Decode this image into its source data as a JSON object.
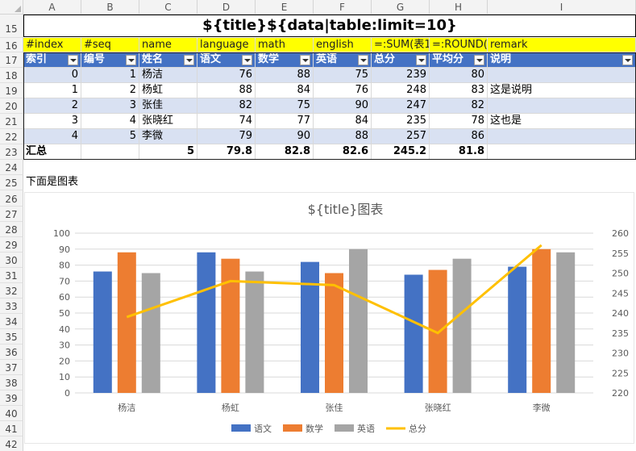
{
  "columns": [
    "A",
    "B",
    "C",
    "D",
    "E",
    "F",
    "G",
    "H",
    "I"
  ],
  "rows": [
    "15",
    "16",
    "17",
    "18",
    "19",
    "20",
    "21",
    "22",
    "23",
    "24",
    "25",
    "26",
    "27",
    "28",
    "29",
    "30",
    "31",
    "32",
    "33",
    "34",
    "35",
    "36",
    "37",
    "38",
    "39",
    "40",
    "41",
    "42"
  ],
  "title_cell": "${title}${data|table:limit=10}",
  "template_row": [
    "#index",
    "#seq",
    "name",
    "language",
    "math",
    "english",
    "=:SUM(表1",
    "=:ROUND(",
    "remark"
  ],
  "header_row": [
    "索引",
    "编号",
    "姓名",
    "语文",
    "数学",
    "英语",
    "总分",
    "平均分",
    "说明"
  ],
  "data_rows": [
    [
      "0",
      "1",
      "杨洁",
      "76",
      "88",
      "75",
      "239",
      "80",
      ""
    ],
    [
      "1",
      "2",
      "杨虹",
      "88",
      "84",
      "76",
      "248",
      "83",
      "这是说明"
    ],
    [
      "2",
      "3",
      "张佳",
      "82",
      "75",
      "90",
      "247",
      "82",
      ""
    ],
    [
      "3",
      "4",
      "张晓红",
      "74",
      "77",
      "84",
      "235",
      "78",
      "这也是"
    ],
    [
      "4",
      "5",
      "李微",
      "79",
      "90",
      "88",
      "257",
      "86",
      ""
    ]
  ],
  "summary_row": [
    "汇总",
    "",
    "5",
    "79.8",
    "82.8",
    "82.6",
    "245.2",
    "81.8",
    ""
  ],
  "note_text": "下面是图表",
  "colors": {
    "header_blue": "#4472c4",
    "band": "#d9e1f2",
    "template_yellow": "#ffff00",
    "s_lang": "#4472c4",
    "s_math": "#ed7d31",
    "s_eng": "#a5a5a5",
    "s_total": "#ffc000"
  },
  "chart_data": {
    "type": "bar",
    "title": "${title}图表",
    "categories": [
      "杨洁",
      "杨虹",
      "张佳",
      "张晓红",
      "李微"
    ],
    "series": [
      {
        "name": "语文",
        "type": "bar",
        "axis": "left",
        "values": [
          76,
          88,
          82,
          74,
          79
        ]
      },
      {
        "name": "数学",
        "type": "bar",
        "axis": "left",
        "values": [
          88,
          84,
          75,
          77,
          90
        ]
      },
      {
        "name": "英语",
        "type": "bar",
        "axis": "left",
        "values": [
          75,
          76,
          90,
          84,
          88
        ]
      },
      {
        "name": "总分",
        "type": "line",
        "axis": "right",
        "values": [
          239,
          248,
          247,
          235,
          257
        ]
      }
    ],
    "y_left": {
      "min": 0,
      "max": 100,
      "step": 10,
      "ticks": [
        "0",
        "10",
        "20",
        "30",
        "40",
        "50",
        "60",
        "70",
        "80",
        "90",
        "100"
      ]
    },
    "y_right": {
      "min": 220,
      "max": 260,
      "step": 5,
      "ticks": [
        "220",
        "225",
        "230",
        "235",
        "240",
        "245",
        "250",
        "255",
        "260"
      ]
    },
    "grid": true,
    "legend_position": "bottom"
  }
}
